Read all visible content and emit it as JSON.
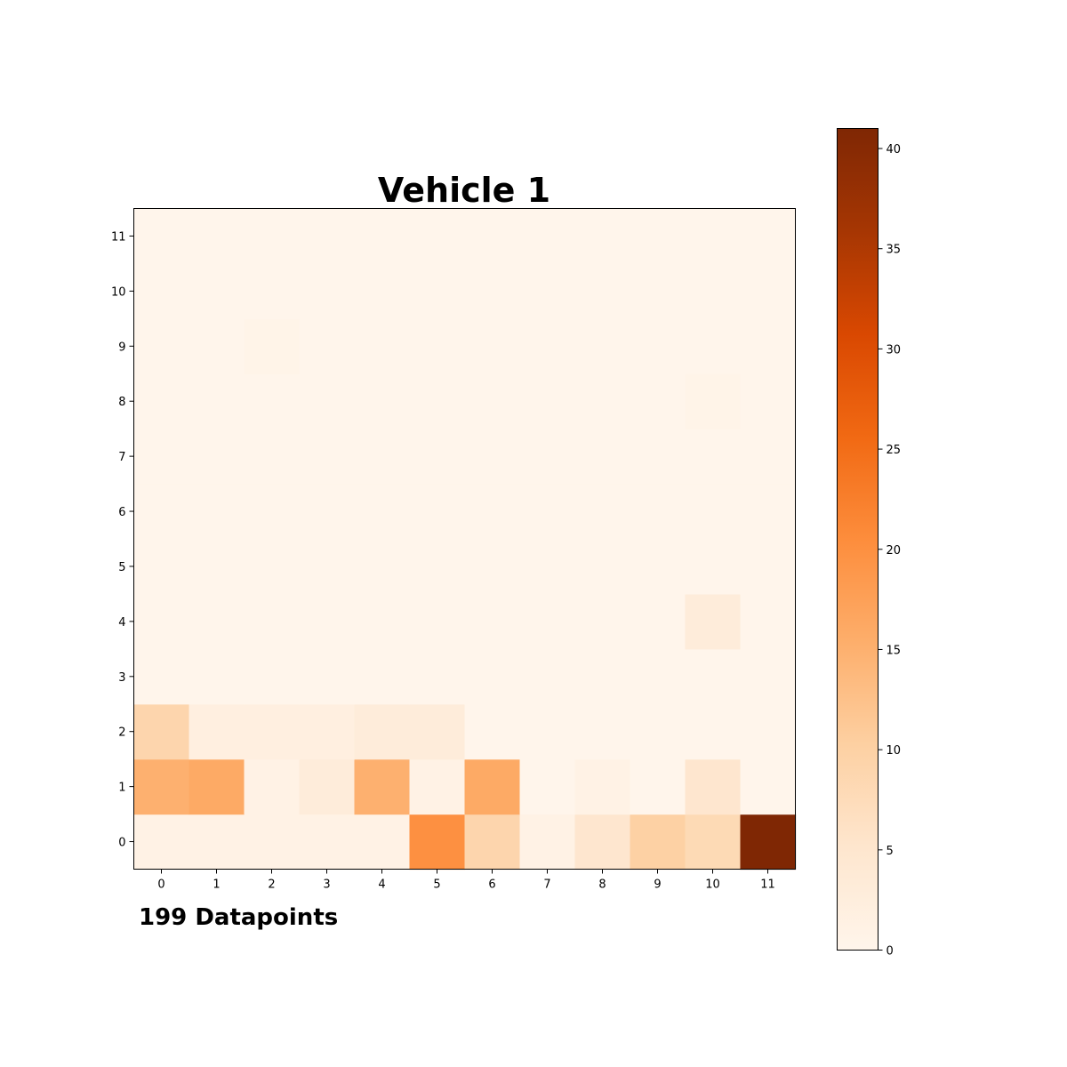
{
  "chart_data": {
    "type": "heatmap",
    "title": "Vehicle 1",
    "annotation": "199 Datapoints",
    "xlabel": "",
    "ylabel": "",
    "x_ticks": [
      "0",
      "1",
      "2",
      "3",
      "4",
      "5",
      "6",
      "7",
      "8",
      "9",
      "10",
      "11"
    ],
    "y_ticks": [
      "0",
      "1",
      "2",
      "3",
      "4",
      "5",
      "6",
      "7",
      "8",
      "9",
      "10",
      "11"
    ],
    "y_direction": "bottom-to-top",
    "colormap": "Oranges",
    "colormap_stops": [
      "#fff5eb",
      "#fee6ce",
      "#fdd0a2",
      "#fdae6b",
      "#fd8d3c",
      "#f16913",
      "#d94801",
      "#a63603",
      "#7f2704"
    ],
    "clim": [
      0,
      41
    ],
    "colorbar_ticks": [
      "0",
      "5",
      "10",
      "15",
      "20",
      "25",
      "30",
      "35",
      "40"
    ],
    "colorbar_tick_values": [
      0,
      5,
      10,
      15,
      20,
      25,
      30,
      35,
      40
    ],
    "legend_position": "right",
    "rows_y0_to_y11": [
      [
        1,
        1,
        1,
        1,
        1,
        20,
        9,
        1,
        5,
        10,
        8,
        41
      ],
      [
        15,
        16,
        1,
        3,
        15,
        1,
        16,
        0,
        1,
        0,
        5,
        0
      ],
      [
        9,
        2,
        2,
        2,
        3,
        3,
        0,
        0,
        0,
        0,
        0,
        0
      ],
      [
        0,
        0,
        0,
        0,
        0,
        0,
        0,
        0,
        0,
        0,
        0,
        0
      ],
      [
        0,
        0,
        0,
        0,
        0,
        0,
        0,
        0,
        0,
        0,
        3,
        0
      ],
      [
        0,
        0,
        0,
        0,
        0,
        0,
        0,
        0,
        0,
        0,
        0,
        0
      ],
      [
        0,
        0,
        0,
        0,
        0,
        0,
        0,
        0,
        0,
        0,
        0,
        0
      ],
      [
        0,
        0,
        0,
        0,
        0,
        0,
        0,
        0,
        0,
        0,
        0,
        0
      ],
      [
        0,
        0,
        0,
        0,
        0,
        0,
        0,
        0,
        0,
        0,
        0.5,
        0
      ],
      [
        0,
        0,
        0.5,
        0,
        0,
        0,
        0,
        0,
        0,
        0,
        0,
        0
      ],
      [
        0,
        0,
        0,
        0,
        0,
        0,
        0,
        0,
        0,
        0,
        0,
        0
      ],
      [
        0,
        0,
        0,
        0,
        0,
        0,
        0,
        0,
        0,
        0,
        0,
        0
      ]
    ]
  }
}
